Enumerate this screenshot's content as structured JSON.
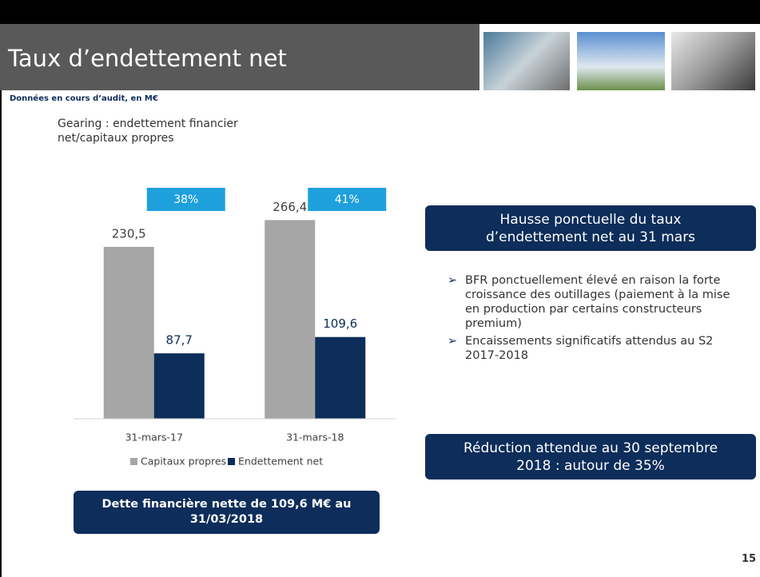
{
  "header": {
    "title": "Taux d’endettement net"
  },
  "subtitle": "Données en cours d’audit, en M€",
  "chart_data": {
    "type": "bar",
    "title": "Gearing : endettement financier net/capitaux propres",
    "categories": [
      "31-mars-17",
      "31-mars-18"
    ],
    "series": [
      {
        "name": "Capitaux propres",
        "color": "#a6a6a6",
        "values": [
          230.5,
          266.4
        ],
        "value_labels": [
          "230,5",
          "266,4"
        ]
      },
      {
        "name": "Endettement net",
        "color": "#0d2d5a",
        "values": [
          87.7,
          109.6
        ],
        "value_labels": [
          "87,7",
          "109,6"
        ]
      }
    ],
    "gearing": {
      "color": "#1ea0dc",
      "values": [
        38,
        41
      ],
      "value_labels": [
        "38%",
        "41%"
      ]
    },
    "ylim": [
      0,
      300
    ],
    "legend": "bottom"
  },
  "callouts": [
    "Hausse ponctuelle du taux d’endettement net au 31 mars",
    "Réduction attendue au 30 septembre 2018 : autour de 35%"
  ],
  "bullets": [
    "BFR ponctuellement élevé en raison la forte croissance des outillages (paiement à la mise en production par certains constructeurs premium)",
    "Encaissements significatifs attendus au S2 2017-2018"
  ],
  "footer_box": "Dette financière nette de 109,6 M€ au 31/03/2018",
  "page_number": "15"
}
